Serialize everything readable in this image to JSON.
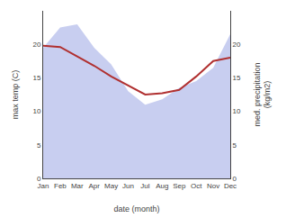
{
  "chart_data": {
    "type": "line",
    "xlabel": "date (month)",
    "ylabel": "max temp (C)",
    "y2label": "med. precipitation\n(kg/m2)",
    "categories": [
      "Jan",
      "Feb",
      "Mar",
      "Apr",
      "May",
      "Jun",
      "Jul",
      "Aug",
      "Sep",
      "Oct",
      "Nov",
      "Dec"
    ],
    "series": [
      {
        "type": "area",
        "axis": "y2",
        "color": "#aab4e8",
        "values": [
          19.5,
          22.5,
          23.0,
          19.5,
          17.0,
          13.0,
          11.0,
          11.8,
          13.5,
          14.5,
          16.5,
          21.5
        ]
      },
      {
        "type": "line",
        "color": "#b03030",
        "values": [
          19.8,
          19.6,
          18.2,
          16.8,
          15.2,
          13.8,
          12.5,
          12.7,
          13.2,
          15.2,
          17.5,
          18.0
        ]
      }
    ],
    "ylim": [
      0,
      25
    ],
    "yticks": [
      0,
      5,
      10,
      15,
      20
    ],
    "y2lim": [
      0,
      25
    ],
    "y2ticks": [
      0,
      5,
      10,
      15,
      20
    ],
    "grid": false
  }
}
